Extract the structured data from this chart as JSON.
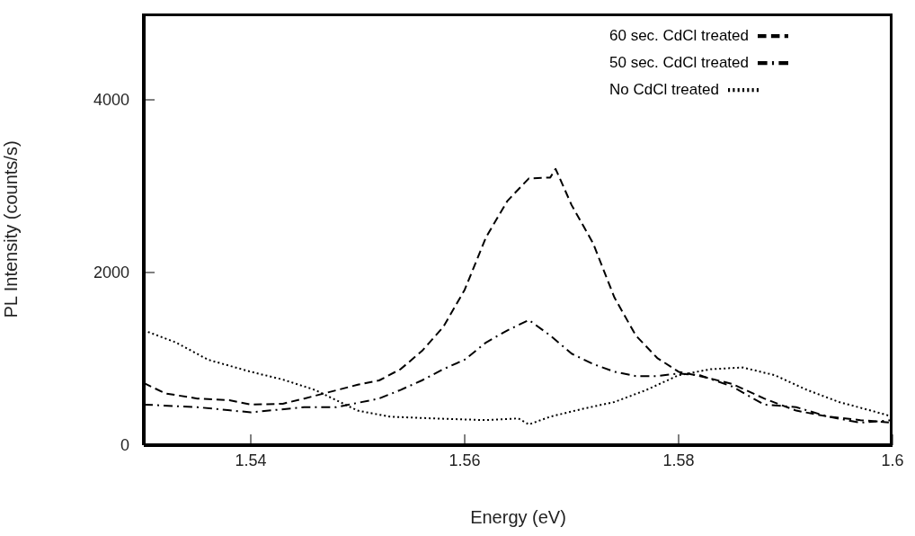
{
  "chart_data": {
    "type": "line",
    "xlabel": "Energy (eV)",
    "ylabel": "PL Intensity (counts/s)",
    "xlim": [
      1.53,
      1.6
    ],
    "xticks": [
      1.54,
      1.56,
      1.58,
      1.6
    ],
    "ylim": [
      0,
      5000
    ],
    "yticks": [
      0,
      2000,
      4000
    ],
    "grid": false,
    "legend": "top right",
    "marker": "none",
    "series": [
      {
        "name": "60 sec. CdCl treated",
        "color": "#000000",
        "line_style": "dashed",
        "x": [
          1.53,
          1.532,
          1.535,
          1.538,
          1.54,
          1.543,
          1.545,
          1.55,
          1.552,
          1.554,
          1.556,
          1.558,
          1.56,
          1.562,
          1.564,
          1.566,
          1.568,
          1.5685,
          1.57,
          1.572,
          1.574,
          1.576,
          1.578,
          1.58,
          1.582,
          1.585,
          1.588,
          1.591,
          1.594,
          1.597,
          1.6
        ],
        "values": [
          720,
          600,
          540,
          520,
          470,
          480,
          540,
          700,
          750,
          880,
          1090,
          1370,
          1800,
          2410,
          2830,
          3090,
          3100,
          3200,
          2780,
          2340,
          1710,
          1270,
          1010,
          850,
          800,
          710,
          540,
          400,
          330,
          290,
          260
        ]
      },
      {
        "name": "50 sec. CdCl treated",
        "color": "#000000",
        "line_style": "dashdot",
        "x": [
          1.53,
          1.535,
          1.54,
          1.545,
          1.548,
          1.552,
          1.554,
          1.556,
          1.558,
          1.56,
          1.562,
          1.564,
          1.566,
          1.568,
          1.57,
          1.572,
          1.574,
          1.576,
          1.578,
          1.58,
          1.582,
          1.585,
          1.588,
          1.591,
          1.594,
          1.597,
          1.6
        ],
        "values": [
          470,
          440,
          380,
          440,
          440,
          540,
          640,
          750,
          880,
          990,
          1190,
          1330,
          1450,
          1270,
          1060,
          940,
          850,
          800,
          800,
          830,
          810,
          680,
          470,
          440,
          330,
          260,
          290
        ]
      },
      {
        "name": "No CdCl treated",
        "color": "#000000",
        "line_style": "dotted",
        "x": [
          1.53,
          1.533,
          1.536,
          1.54,
          1.543,
          1.546,
          1.55,
          1.553,
          1.557,
          1.562,
          1.565,
          1.566,
          1.568,
          1.571,
          1.574,
          1.577,
          1.58,
          1.583,
          1.586,
          1.589,
          1.592,
          1.595,
          1.598,
          1.6
        ],
        "values": [
          1330,
          1190,
          990,
          850,
          760,
          640,
          400,
          330,
          310,
          290,
          310,
          240,
          330,
          420,
          500,
          640,
          810,
          880,
          900,
          810,
          640,
          500,
          400,
          330
        ]
      }
    ]
  }
}
